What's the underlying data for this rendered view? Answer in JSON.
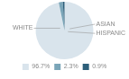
{
  "chart_data": {
    "type": "pie",
    "categories": [
      "WHITE",
      "ASIAN",
      "HISPANIC"
    ],
    "values": [
      96.7,
      2.3,
      0.9
    ],
    "value_labels": [
      "96.7%",
      "2.3%",
      "0.9%"
    ],
    "colors": [
      "#d9e4ec",
      "#7aa5b8",
      "#2d5f7a"
    ],
    "legend": "bottom"
  }
}
